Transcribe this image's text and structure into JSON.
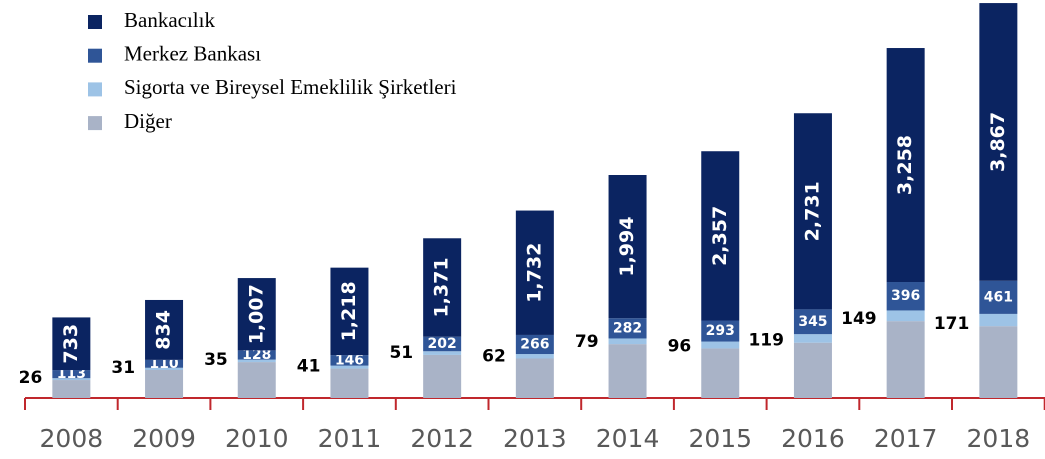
{
  "chart_data": {
    "type": "stacked-bar",
    "categories": [
      "2008",
      "2009",
      "2010",
      "2011",
      "2012",
      "2013",
      "2014",
      "2015",
      "2016",
      "2017",
      "2018"
    ],
    "series": [
      {
        "name": "Diğer",
        "color": "#a9b3c7",
        "values": [
          250,
          390,
          500,
          410,
          600,
          550,
          750,
          690,
          770,
          1070,
          1000
        ]
      },
      {
        "name": "Sigorta ve Bireysel Emeklilik Şirketleri",
        "color": "#9dc3e6",
        "values": [
          26,
          31,
          35,
          41,
          51,
          62,
          79,
          96,
          119,
          149,
          171
        ]
      },
      {
        "name": "Merkez Bankası",
        "color": "#2f5597",
        "values": [
          113,
          110,
          128,
          146,
          202,
          266,
          282,
          293,
          345,
          396,
          461
        ]
      },
      {
        "name": "Bankacılık",
        "color": "#0b2461",
        "values": [
          733,
          834,
          1007,
          1218,
          1371,
          1732,
          1994,
          2357,
          2731,
          3258,
          3867
        ],
        "value_labels": [
          "733",
          "834",
          "1,007",
          "1,218",
          "1,371",
          "1,732",
          "1,994",
          "2,357",
          "2,731",
          "3,258",
          "3,867"
        ]
      }
    ],
    "legend_order": [
      3,
      2,
      1,
      0
    ],
    "ylim": [
      0,
      5500
    ]
  }
}
